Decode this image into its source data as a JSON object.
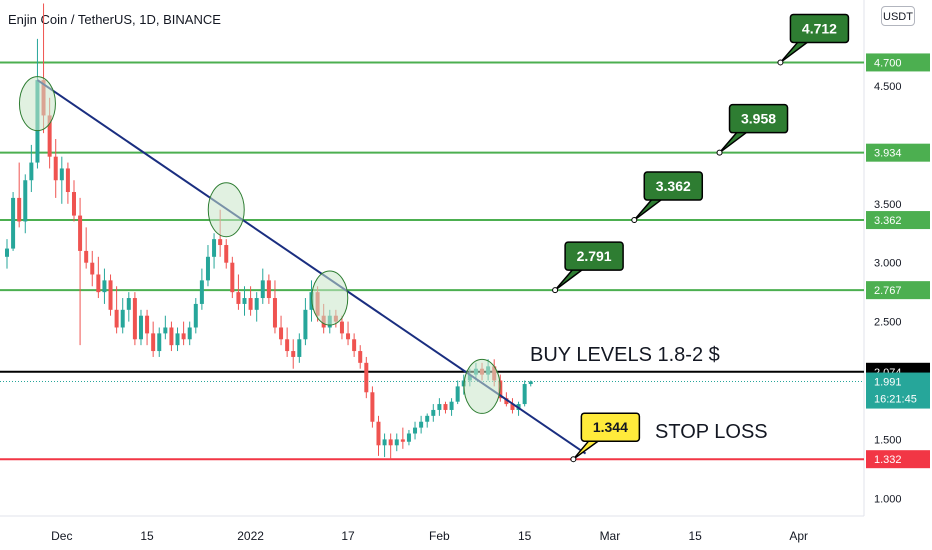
{
  "header": {
    "title": "Enjin Coin / TetherUS, 1D, BINANCE",
    "currency_button": "USDT"
  },
  "chart_data": {
    "type": "candlestick",
    "symbol": "Enjin Coin / TetherUS",
    "interval": "1D",
    "exchange": "BINANCE",
    "ylim": [
      0.9,
      5.3
    ],
    "y_ticks": [
      "1.000",
      "1.500",
      "2.500",
      "3.000",
      "3.500",
      "4.500"
    ],
    "x_ticks": [
      "Dec",
      "15",
      "2022",
      "17",
      "Feb",
      "15",
      "Mar",
      "15",
      "Apr"
    ],
    "levels": [
      {
        "price": 4.7,
        "label": "4.700",
        "color": "#4caf50"
      },
      {
        "price": 3.934,
        "label": "3.934",
        "color": "#4caf50"
      },
      {
        "price": 3.362,
        "label": "3.362",
        "color": "#4caf50"
      },
      {
        "price": 2.767,
        "label": "2.767",
        "color": "#4caf50"
      },
      {
        "price": 2.074,
        "label": "2.074",
        "color": "#000000"
      },
      {
        "price": 1.332,
        "label": "1.332",
        "color": "#f23645"
      }
    ],
    "current_price": {
      "label": "1.991",
      "countdown": "16:21:45",
      "color": "#26a69a"
    },
    "callouts": [
      {
        "text": "4.712",
        "color": "#2e7d32"
      },
      {
        "text": "3.958",
        "color": "#2e7d32"
      },
      {
        "text": "3.362",
        "color": "#2e7d32"
      },
      {
        "text": "2.791",
        "color": "#2e7d32"
      },
      {
        "text": "1.344",
        "color": "#ffeb3b"
      }
    ],
    "annotations": [
      "BUY LEVELS 1.8-2 $",
      "STOP LOSS"
    ],
    "trendline": {
      "from": [
        "Nov 27",
        4.55
      ],
      "to": [
        "Feb 25",
        1.38
      ],
      "color": "#1a2e80"
    },
    "candles": [
      {
        "t": "Nov 22",
        "o": 3.05,
        "h": 3.2,
        "l": 2.95,
        "c": 3.12
      },
      {
        "t": "Nov 23",
        "o": 3.12,
        "h": 3.6,
        "l": 3.1,
        "c": 3.55
      },
      {
        "t": "Nov 24",
        "o": 3.55,
        "h": 3.85,
        "l": 3.3,
        "c": 3.35
      },
      {
        "t": "Nov 25",
        "o": 3.35,
        "h": 3.75,
        "l": 3.25,
        "c": 3.7
      },
      {
        "t": "Nov 26",
        "o": 3.7,
        "h": 4.0,
        "l": 3.6,
        "c": 3.85
      },
      {
        "t": "Nov 27",
        "o": 3.85,
        "h": 4.9,
        "l": 3.8,
        "c": 4.55
      },
      {
        "t": "Nov 28",
        "o": 4.55,
        "h": 5.2,
        "l": 4.1,
        "c": 4.25
      },
      {
        "t": "Nov 29",
        "o": 4.25,
        "h": 4.4,
        "l": 3.8,
        "c": 3.9
      },
      {
        "t": "Nov 30",
        "o": 3.9,
        "h": 4.05,
        "l": 3.55,
        "c": 3.7
      },
      {
        "t": "Dec 1",
        "o": 3.7,
        "h": 3.9,
        "l": 3.5,
        "c": 3.8
      },
      {
        "t": "Dec 2",
        "o": 3.8,
        "h": 3.85,
        "l": 3.5,
        "c": 3.6
      },
      {
        "t": "Dec 3",
        "o": 3.6,
        "h": 3.7,
        "l": 3.35,
        "c": 3.4
      },
      {
        "t": "Dec 4",
        "o": 3.4,
        "h": 3.55,
        "l": 2.3,
        "c": 3.1
      },
      {
        "t": "Dec 5",
        "o": 3.1,
        "h": 3.3,
        "l": 2.95,
        "c": 3.0
      },
      {
        "t": "Dec 6",
        "o": 3.0,
        "h": 3.1,
        "l": 2.8,
        "c": 2.9
      },
      {
        "t": "Dec 7",
        "o": 2.9,
        "h": 3.05,
        "l": 2.7,
        "c": 2.75
      },
      {
        "t": "Dec 8",
        "o": 2.75,
        "h": 2.95,
        "l": 2.65,
        "c": 2.85
      },
      {
        "t": "Dec 9",
        "o": 2.85,
        "h": 2.9,
        "l": 2.55,
        "c": 2.6
      },
      {
        "t": "Dec 10",
        "o": 2.6,
        "h": 2.8,
        "l": 2.4,
        "c": 2.45
      },
      {
        "t": "Dec 11",
        "o": 2.45,
        "h": 2.7,
        "l": 2.4,
        "c": 2.6
      },
      {
        "t": "Dec 12",
        "o": 2.6,
        "h": 2.75,
        "l": 2.5,
        "c": 2.7
      },
      {
        "t": "Dec 13",
        "o": 2.7,
        "h": 2.75,
        "l": 2.3,
        "c": 2.35
      },
      {
        "t": "Dec 14",
        "o": 2.35,
        "h": 2.6,
        "l": 2.3,
        "c": 2.55
      },
      {
        "t": "Dec 15",
        "o": 2.55,
        "h": 2.6,
        "l": 2.3,
        "c": 2.4
      },
      {
        "t": "Dec 16",
        "o": 2.4,
        "h": 2.5,
        "l": 2.2,
        "c": 2.25
      },
      {
        "t": "Dec 17",
        "o": 2.25,
        "h": 2.45,
        "l": 2.2,
        "c": 2.4
      },
      {
        "t": "Dec 18",
        "o": 2.4,
        "h": 2.55,
        "l": 2.35,
        "c": 2.45
      },
      {
        "t": "Dec 19",
        "o": 2.45,
        "h": 2.5,
        "l": 2.25,
        "c": 2.3
      },
      {
        "t": "Dec 20",
        "o": 2.3,
        "h": 2.45,
        "l": 2.25,
        "c": 2.4
      },
      {
        "t": "Dec 21",
        "o": 2.4,
        "h": 2.5,
        "l": 2.3,
        "c": 2.35
      },
      {
        "t": "Dec 22",
        "o": 2.35,
        "h": 2.5,
        "l": 2.3,
        "c": 2.45
      },
      {
        "t": "Dec 23",
        "o": 2.45,
        "h": 2.7,
        "l": 2.4,
        "c": 2.65
      },
      {
        "t": "Dec 24",
        "o": 2.65,
        "h": 2.95,
        "l": 2.6,
        "c": 2.85
      },
      {
        "t": "Dec 25",
        "o": 2.85,
        "h": 3.15,
        "l": 2.8,
        "c": 3.05
      },
      {
        "t": "Dec 26",
        "o": 3.05,
        "h": 3.25,
        "l": 2.95,
        "c": 3.2
      },
      {
        "t": "Dec 27",
        "o": 3.2,
        "h": 3.45,
        "l": 3.05,
        "c": 3.15
      },
      {
        "t": "Dec 28",
        "o": 3.15,
        "h": 3.2,
        "l": 2.95,
        "c": 3.0
      },
      {
        "t": "Dec 29",
        "o": 3.0,
        "h": 3.05,
        "l": 2.7,
        "c": 2.75
      },
      {
        "t": "Dec 30",
        "o": 2.75,
        "h": 2.9,
        "l": 2.6,
        "c": 2.65
      },
      {
        "t": "Dec 31",
        "o": 2.65,
        "h": 2.8,
        "l": 2.55,
        "c": 2.7
      },
      {
        "t": "Jan 1",
        "o": 2.7,
        "h": 2.8,
        "l": 2.55,
        "c": 2.6
      },
      {
        "t": "Jan 2",
        "o": 2.6,
        "h": 2.75,
        "l": 2.5,
        "c": 2.7
      },
      {
        "t": "Jan 3",
        "o": 2.7,
        "h": 2.95,
        "l": 2.65,
        "c": 2.85
      },
      {
        "t": "Jan 4",
        "o": 2.85,
        "h": 2.9,
        "l": 2.65,
        "c": 2.7
      },
      {
        "t": "Jan 5",
        "o": 2.7,
        "h": 2.85,
        "l": 2.4,
        "c": 2.45
      },
      {
        "t": "Jan 6",
        "o": 2.45,
        "h": 2.55,
        "l": 2.3,
        "c": 2.35
      },
      {
        "t": "Jan 7",
        "o": 2.35,
        "h": 2.45,
        "l": 2.2,
        "c": 2.25
      },
      {
        "t": "Jan 8",
        "o": 2.25,
        "h": 2.35,
        "l": 2.1,
        "c": 2.2
      },
      {
        "t": "Jan 9",
        "o": 2.2,
        "h": 2.4,
        "l": 2.15,
        "c": 2.35
      },
      {
        "t": "Jan 10",
        "o": 2.35,
        "h": 2.7,
        "l": 2.3,
        "c": 2.6
      },
      {
        "t": "Jan 11",
        "o": 2.6,
        "h": 2.85,
        "l": 2.5,
        "c": 2.75
      },
      {
        "t": "Jan 12",
        "o": 2.75,
        "h": 2.8,
        "l": 2.5,
        "c": 2.55
      },
      {
        "t": "Jan 13",
        "o": 2.55,
        "h": 2.65,
        "l": 2.4,
        "c": 2.45
      },
      {
        "t": "Jan 14",
        "o": 2.45,
        "h": 2.6,
        "l": 2.4,
        "c": 2.55
      },
      {
        "t": "Jan 15",
        "o": 2.55,
        "h": 2.6,
        "l": 2.45,
        "c": 2.5
      },
      {
        "t": "Jan 16",
        "o": 2.5,
        "h": 2.55,
        "l": 2.35,
        "c": 2.4
      },
      {
        "t": "Jan 17",
        "o": 2.4,
        "h": 2.5,
        "l": 2.3,
        "c": 2.35
      },
      {
        "t": "Jan 18",
        "o": 2.35,
        "h": 2.4,
        "l": 2.2,
        "c": 2.25
      },
      {
        "t": "Jan 19",
        "o": 2.25,
        "h": 2.3,
        "l": 2.1,
        "c": 2.15
      },
      {
        "t": "Jan 20",
        "o": 2.15,
        "h": 2.2,
        "l": 1.85,
        "c": 1.9
      },
      {
        "t": "Jan 21",
        "o": 1.9,
        "h": 1.95,
        "l": 1.6,
        "c": 1.65
      },
      {
        "t": "Jan 22",
        "o": 1.65,
        "h": 1.7,
        "l": 1.36,
        "c": 1.45
      },
      {
        "t": "Jan 23",
        "o": 1.45,
        "h": 1.55,
        "l": 1.35,
        "c": 1.5
      },
      {
        "t": "Jan 24",
        "o": 1.5,
        "h": 1.55,
        "l": 1.33,
        "c": 1.45
      },
      {
        "t": "Jan 25",
        "o": 1.45,
        "h": 1.55,
        "l": 1.4,
        "c": 1.5
      },
      {
        "t": "Jan 26",
        "o": 1.5,
        "h": 1.6,
        "l": 1.42,
        "c": 1.48
      },
      {
        "t": "Jan 27",
        "o": 1.48,
        "h": 1.58,
        "l": 1.45,
        "c": 1.55
      },
      {
        "t": "Jan 28",
        "o": 1.55,
        "h": 1.65,
        "l": 1.5,
        "c": 1.6
      },
      {
        "t": "Jan 29",
        "o": 1.6,
        "h": 1.7,
        "l": 1.55,
        "c": 1.65
      },
      {
        "t": "Jan 30",
        "o": 1.65,
        "h": 1.72,
        "l": 1.6,
        "c": 1.7
      },
      {
        "t": "Jan 31",
        "o": 1.7,
        "h": 1.8,
        "l": 1.65,
        "c": 1.75
      },
      {
        "t": "Feb 1",
        "o": 1.75,
        "h": 1.85,
        "l": 1.7,
        "c": 1.8
      },
      {
        "t": "Feb 2",
        "o": 1.8,
        "h": 1.82,
        "l": 1.72,
        "c": 1.75
      },
      {
        "t": "Feb 3",
        "o": 1.75,
        "h": 1.85,
        "l": 1.7,
        "c": 1.82
      },
      {
        "t": "Feb 4",
        "o": 1.82,
        "h": 2.0,
        "l": 1.8,
        "c": 1.95
      },
      {
        "t": "Feb 5",
        "o": 1.95,
        "h": 2.05,
        "l": 1.88,
        "c": 2.0
      },
      {
        "t": "Feb 6",
        "o": 2.0,
        "h": 2.1,
        "l": 1.95,
        "c": 2.05
      },
      {
        "t": "Feb 7",
        "o": 2.05,
        "h": 2.15,
        "l": 2.0,
        "c": 2.1
      },
      {
        "t": "Feb 8",
        "o": 2.1,
        "h": 2.15,
        "l": 2.0,
        "c": 2.05
      },
      {
        "t": "Feb 9",
        "o": 2.05,
        "h": 2.18,
        "l": 2.0,
        "c": 2.12
      },
      {
        "t": "Feb 10",
        "o": 2.12,
        "h": 2.18,
        "l": 1.95,
        "c": 2.0
      },
      {
        "t": "Feb 11",
        "o": 2.0,
        "h": 2.05,
        "l": 1.82,
        "c": 1.85
      },
      {
        "t": "Feb 12",
        "o": 1.85,
        "h": 1.9,
        "l": 1.78,
        "c": 1.8
      },
      {
        "t": "Feb 13",
        "o": 1.8,
        "h": 1.85,
        "l": 1.72,
        "c": 1.75
      },
      {
        "t": "Feb 14",
        "o": 1.75,
        "h": 1.82,
        "l": 1.7,
        "c": 1.8
      },
      {
        "t": "Feb 15",
        "o": 1.8,
        "h": 2.0,
        "l": 1.78,
        "c": 1.97
      },
      {
        "t": "Feb 16",
        "o": 1.97,
        "h": 2.0,
        "l": 1.95,
        "c": 1.991
      }
    ]
  }
}
